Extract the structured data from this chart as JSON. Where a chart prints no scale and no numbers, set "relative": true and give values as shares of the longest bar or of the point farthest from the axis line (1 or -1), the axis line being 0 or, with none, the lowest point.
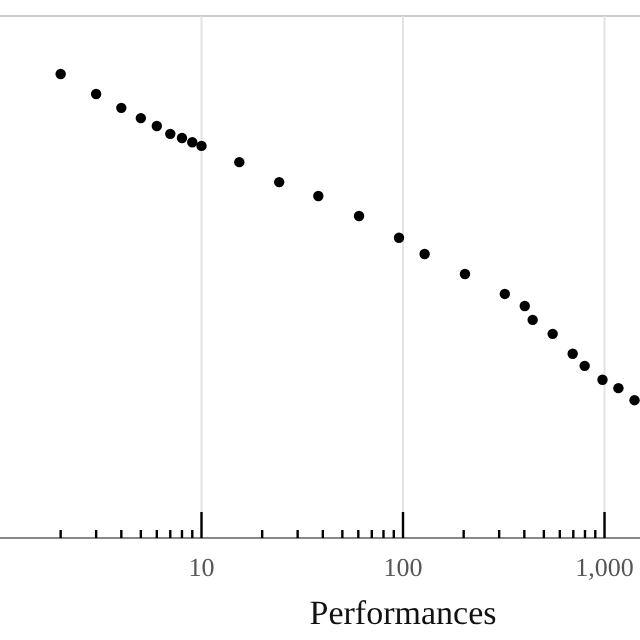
{
  "chart_data": {
    "type": "scatter",
    "xlabel": "Performances",
    "relative": true,
    "log": "x",
    "grid": "x",
    "marker": "circle",
    "xlim": [
      1,
      1500
    ],
    "xticks": [
      {
        "value": 2,
        "label": null
      },
      {
        "value": 3,
        "label": null
      },
      {
        "value": 4,
        "label": null
      },
      {
        "value": 5,
        "label": null
      },
      {
        "value": 6,
        "label": null
      },
      {
        "value": 7,
        "label": null
      },
      {
        "value": 8,
        "label": null
      },
      {
        "value": 9,
        "label": null
      },
      10,
      {
        "value": 20,
        "label": null
      },
      {
        "value": 30,
        "label": null
      },
      {
        "value": 40,
        "label": null
      },
      {
        "value": 50,
        "label": null
      },
      {
        "value": 60,
        "label": null
      },
      {
        "value": 70,
        "label": null
      },
      {
        "value": 80,
        "label": null
      },
      {
        "value": 90,
        "label": null
      },
      100,
      {
        "value": 200,
        "label": null
      },
      {
        "value": 300,
        "label": null
      },
      {
        "value": 400,
        "label": null
      },
      {
        "value": 500,
        "label": null
      },
      {
        "value": 600,
        "label": null
      },
      {
        "value": 700,
        "label": null
      },
      {
        "value": 800,
        "label": null
      },
      {
        "value": 900,
        "label": null
      },
      {
        "value": 1000,
        "label": "1,000"
      }
    ],
    "series": [
      {
        "color": "#000000",
        "x": [
          2,
          3,
          4,
          5,
          6,
          7,
          8,
          9,
          10,
          15.4,
          24.3,
          38,
          60.5,
          95.5,
          128,
          203,
          320,
          402,
          440,
          553,
          695,
          797,
          977,
          1172,
          1409
        ],
        "values": [
          1.0,
          0.957,
          0.927,
          0.905,
          0.888,
          0.871,
          0.862,
          0.853,
          0.845,
          0.81,
          0.767,
          0.737,
          0.694,
          0.647,
          0.612,
          0.569,
          0.526,
          0.5,
          0.47,
          0.44,
          0.397,
          0.371,
          0.341,
          0.323,
          0.297
        ]
      }
    ]
  }
}
